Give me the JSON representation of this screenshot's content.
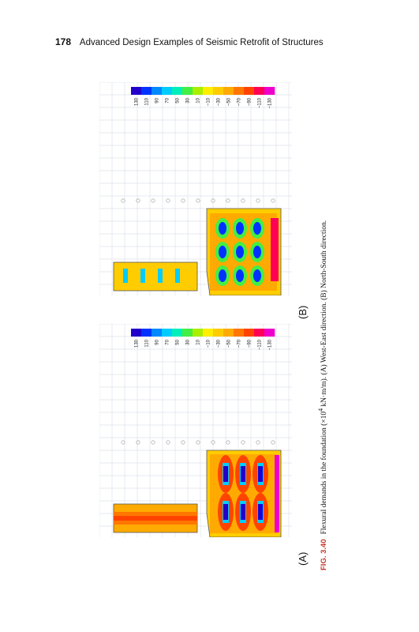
{
  "header": {
    "page_number": "178",
    "running_title": "Advanced Design Examples of Seismic Retrofit of Structures"
  },
  "caption": {
    "figure_no": "FIG. 3.40",
    "text": "Flexural demands in the foundation (×10",
    "superscript": "4",
    "text_after": " kN·m/m). (A) West-East direction. (B) North-South direction."
  },
  "panels": [
    {
      "id": "A",
      "label": "(A)",
      "legend": [
        "130",
        "110",
        "90",
        "70",
        "50",
        "30",
        "10",
        "−10",
        "−30",
        "−50",
        "−70",
        "−90",
        "−110",
        "−130"
      ]
    },
    {
      "id": "B",
      "label": "(B)",
      "legend": [
        "130",
        "110",
        "90",
        "70",
        "50",
        "30",
        "10",
        "−10",
        "−30",
        "−50",
        "−70",
        "−90",
        "−110",
        "−130"
      ]
    }
  ],
  "colors": {
    "scale": [
      "#2200cc",
      "#0033ff",
      "#0088ff",
      "#00ccff",
      "#00eebb",
      "#44ee44",
      "#aaee00",
      "#ffee00",
      "#ffcc00",
      "#ffaa00",
      "#ff7700",
      "#ff4400",
      "#ff0055",
      "#ee00cc"
    ],
    "grid": "#dde3ea",
    "caption_figno": "#c0392b"
  }
}
